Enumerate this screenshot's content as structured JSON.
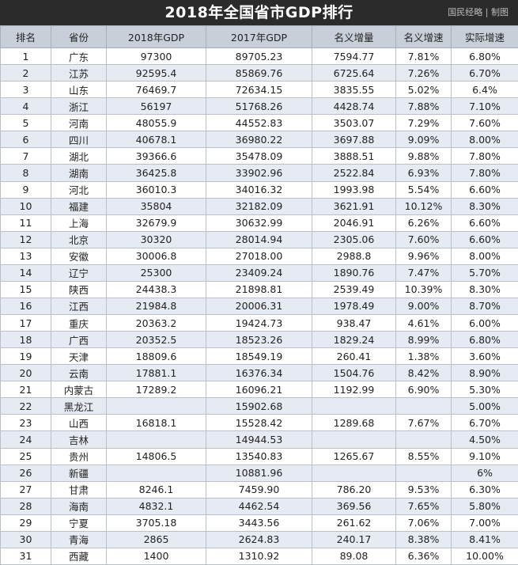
{
  "header": {
    "title": "2018年全国省市GDP排行",
    "credit": "国民经略 | 制图"
  },
  "columns": [
    "排名",
    "省份",
    "2018年GDP",
    "2017年GDP",
    "名义增量",
    "名义增速",
    "实际增速"
  ],
  "rows": [
    {
      "rank": "1",
      "province": "广东",
      "gdp2018": "97300",
      "gdp2017": "89705.23",
      "increase": "7594.77",
      "nominal": "7.81%",
      "real": "6.80%"
    },
    {
      "rank": "2",
      "province": "江苏",
      "gdp2018": "92595.4",
      "gdp2017": "85869.76",
      "increase": "6725.64",
      "nominal": "7.26%",
      "real": "6.70%"
    },
    {
      "rank": "3",
      "province": "山东",
      "gdp2018": "76469.7",
      "gdp2017": "72634.15",
      "increase": "3835.55",
      "nominal": "5.02%",
      "real": "6.4%"
    },
    {
      "rank": "4",
      "province": "浙江",
      "gdp2018": "56197",
      "gdp2017": "51768.26",
      "increase": "4428.74",
      "nominal": "7.88%",
      "real": "7.10%"
    },
    {
      "rank": "5",
      "province": "河南",
      "gdp2018": "48055.9",
      "gdp2017": "44552.83",
      "increase": "3503.07",
      "nominal": "7.29%",
      "real": "7.60%"
    },
    {
      "rank": "6",
      "province": "四川",
      "gdp2018": "40678.1",
      "gdp2017": "36980.22",
      "increase": "3697.88",
      "nominal": "9.09%",
      "real": "8.00%"
    },
    {
      "rank": "7",
      "province": "湖北",
      "gdp2018": "39366.6",
      "gdp2017": "35478.09",
      "increase": "3888.51",
      "nominal": "9.88%",
      "real": "7.80%"
    },
    {
      "rank": "8",
      "province": "湖南",
      "gdp2018": "36425.8",
      "gdp2017": "33902.96",
      "increase": "2522.84",
      "nominal": "6.93%",
      "real": "7.80%"
    },
    {
      "rank": "9",
      "province": "河北",
      "gdp2018": "36010.3",
      "gdp2017": "34016.32",
      "increase": "1993.98",
      "nominal": "5.54%",
      "real": "6.60%"
    },
    {
      "rank": "10",
      "province": "福建",
      "gdp2018": "35804",
      "gdp2017": "32182.09",
      "increase": "3621.91",
      "nominal": "10.12%",
      "real": "8.30%"
    },
    {
      "rank": "11",
      "province": "上海",
      "gdp2018": "32679.9",
      "gdp2017": "30632.99",
      "increase": "2046.91",
      "nominal": "6.26%",
      "real": "6.60%"
    },
    {
      "rank": "12",
      "province": "北京",
      "gdp2018": "30320",
      "gdp2017": "28014.94",
      "increase": "2305.06",
      "nominal": "7.60%",
      "real": "6.60%"
    },
    {
      "rank": "13",
      "province": "安徽",
      "gdp2018": "30006.8",
      "gdp2017": "27018.00",
      "increase": "2988.8",
      "nominal": "9.96%",
      "real": "8.00%"
    },
    {
      "rank": "14",
      "province": "辽宁",
      "gdp2018": "25300",
      "gdp2017": "23409.24",
      "increase": "1890.76",
      "nominal": "7.47%",
      "real": "5.70%"
    },
    {
      "rank": "15",
      "province": "陕西",
      "gdp2018": "24438.3",
      "gdp2017": "21898.81",
      "increase": "2539.49",
      "nominal": "10.39%",
      "real": "8.30%"
    },
    {
      "rank": "16",
      "province": "江西",
      "gdp2018": "21984.8",
      "gdp2017": "20006.31",
      "increase": "1978.49",
      "nominal": "9.00%",
      "real": "8.70%"
    },
    {
      "rank": "17",
      "province": "重庆",
      "gdp2018": "20363.2",
      "gdp2017": "19424.73",
      "increase": "938.47",
      "nominal": "4.61%",
      "real": "6.00%"
    },
    {
      "rank": "18",
      "province": "广西",
      "gdp2018": "20352.5",
      "gdp2017": "18523.26",
      "increase": "1829.24",
      "nominal": "8.99%",
      "real": "6.80%"
    },
    {
      "rank": "19",
      "province": "天津",
      "gdp2018": "18809.6",
      "gdp2017": "18549.19",
      "increase": "260.41",
      "nominal": "1.38%",
      "real": "3.60%"
    },
    {
      "rank": "20",
      "province": "云南",
      "gdp2018": "17881.1",
      "gdp2017": "16376.34",
      "increase": "1504.76",
      "nominal": "8.42%",
      "real": "8.90%"
    },
    {
      "rank": "21",
      "province": "内蒙古",
      "gdp2018": "17289.2",
      "gdp2017": "16096.21",
      "increase": "1192.99",
      "nominal": "6.90%",
      "real": "5.30%"
    },
    {
      "rank": "22",
      "province": "黑龙江",
      "gdp2018": "",
      "gdp2017": "15902.68",
      "increase": "",
      "nominal": "",
      "real": "5.00%"
    },
    {
      "rank": "23",
      "province": "山西",
      "gdp2018": "16818.1",
      "gdp2017": "15528.42",
      "increase": "1289.68",
      "nominal": "7.67%",
      "real": "6.70%"
    },
    {
      "rank": "24",
      "province": "吉林",
      "gdp2018": "",
      "gdp2017": "14944.53",
      "increase": "",
      "nominal": "",
      "real": "4.50%"
    },
    {
      "rank": "25",
      "province": "贵州",
      "gdp2018": "14806.5",
      "gdp2017": "13540.83",
      "increase": "1265.67",
      "nominal": "8.55%",
      "real": "9.10%"
    },
    {
      "rank": "26",
      "province": "新疆",
      "gdp2018": "",
      "gdp2017": "10881.96",
      "increase": "",
      "nominal": "",
      "real": "6%"
    },
    {
      "rank": "27",
      "province": "甘肃",
      "gdp2018": "8246.1",
      "gdp2017": "7459.90",
      "increase": "786.20",
      "nominal": "9.53%",
      "real": "6.30%"
    },
    {
      "rank": "28",
      "province": "海南",
      "gdp2018": "4832.1",
      "gdp2017": "4462.54",
      "increase": "369.56",
      "nominal": "7.65%",
      "real": "5.80%"
    },
    {
      "rank": "29",
      "province": "宁夏",
      "gdp2018": "3705.18",
      "gdp2017": "3443.56",
      "increase": "261.62",
      "nominal": "7.06%",
      "real": "7.00%"
    },
    {
      "rank": "30",
      "province": "青海",
      "gdp2018": "2865",
      "gdp2017": "2624.83",
      "increase": "240.17",
      "nominal": "8.38%",
      "real": "8.41%"
    },
    {
      "rank": "31",
      "province": "西藏",
      "gdp2018": "1400",
      "gdp2017": "1310.92",
      "increase": "89.08",
      "nominal": "6.36%",
      "real": "10.00%"
    }
  ]
}
